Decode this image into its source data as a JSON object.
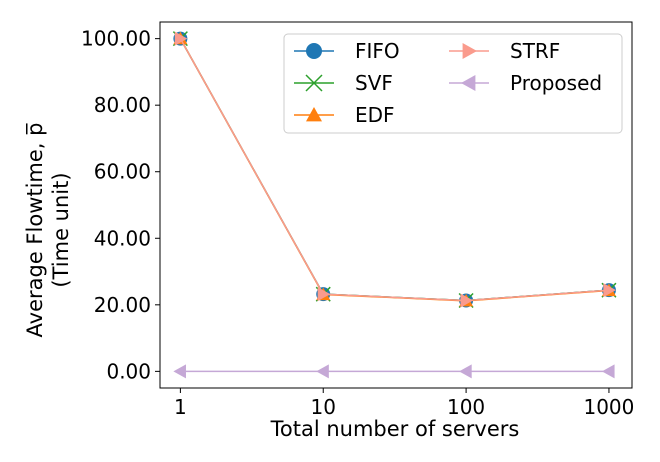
{
  "chart_data": {
    "type": "line",
    "xscale": "log",
    "x": [
      1,
      10,
      100,
      1000
    ],
    "x_tick_labels": [
      "1",
      "10",
      "100",
      "1000"
    ],
    "y_tick_values": [
      0,
      20,
      40,
      60,
      80,
      100
    ],
    "y_tick_labels": [
      "0.00",
      "20.00",
      "40.00",
      "60.00",
      "80.00",
      "100.00"
    ],
    "xlim": [
      0.72,
      1450
    ],
    "ylim": [
      -5,
      105
    ],
    "xlabel": "Total number of servers",
    "ylabel_line1": "Average Flowtime, p̅",
    "ylabel_line2": "(Time unit)",
    "grid": false,
    "legend_position": "top-right",
    "legend_columns": 2,
    "series": [
      {
        "name": "FIFO",
        "values": [
          100.0,
          23.2,
          21.3,
          24.4
        ],
        "color": "#1f77b4",
        "marker": "circle"
      },
      {
        "name": "SVF",
        "values": [
          100.0,
          23.2,
          21.3,
          24.4
        ],
        "color": "#2ca02c",
        "marker": "x"
      },
      {
        "name": "EDF",
        "values": [
          100.0,
          23.1,
          21.2,
          24.3
        ],
        "color": "#ff7f0e",
        "marker": "triangle-up"
      },
      {
        "name": "STRF",
        "values": [
          100.0,
          23.2,
          21.3,
          24.4
        ],
        "color": "#fa9b8d",
        "marker": "triangle-right"
      },
      {
        "name": "Proposed",
        "values": [
          0.0,
          0.0,
          0.0,
          0.0
        ],
        "color": "#c5a8d6",
        "marker": "triangle-left"
      }
    ]
  }
}
